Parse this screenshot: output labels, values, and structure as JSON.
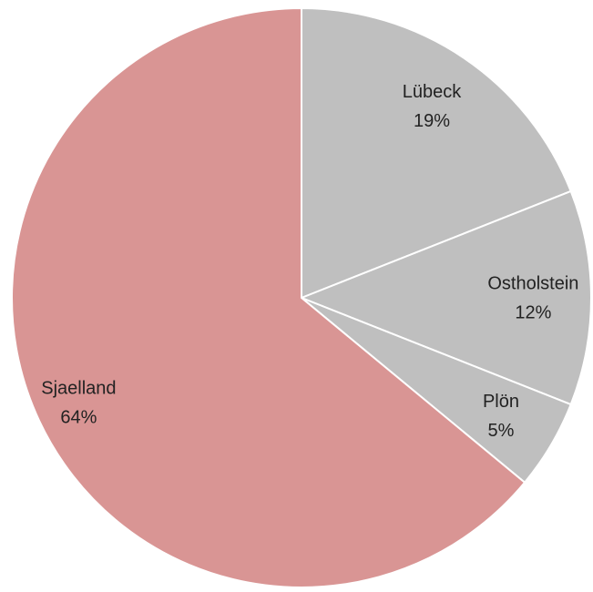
{
  "chart_data": {
    "type": "pie",
    "categories": [
      "Lübeck",
      "Ostholstein",
      "Plön",
      "Sjaelland"
    ],
    "values": [
      19,
      12,
      5,
      64
    ],
    "value_labels": [
      "19%",
      "12%",
      "5%",
      "64%"
    ],
    "colors": [
      "#bfbfbf",
      "#bfbfbf",
      "#bfbfbf",
      "#d99594"
    ]
  }
}
